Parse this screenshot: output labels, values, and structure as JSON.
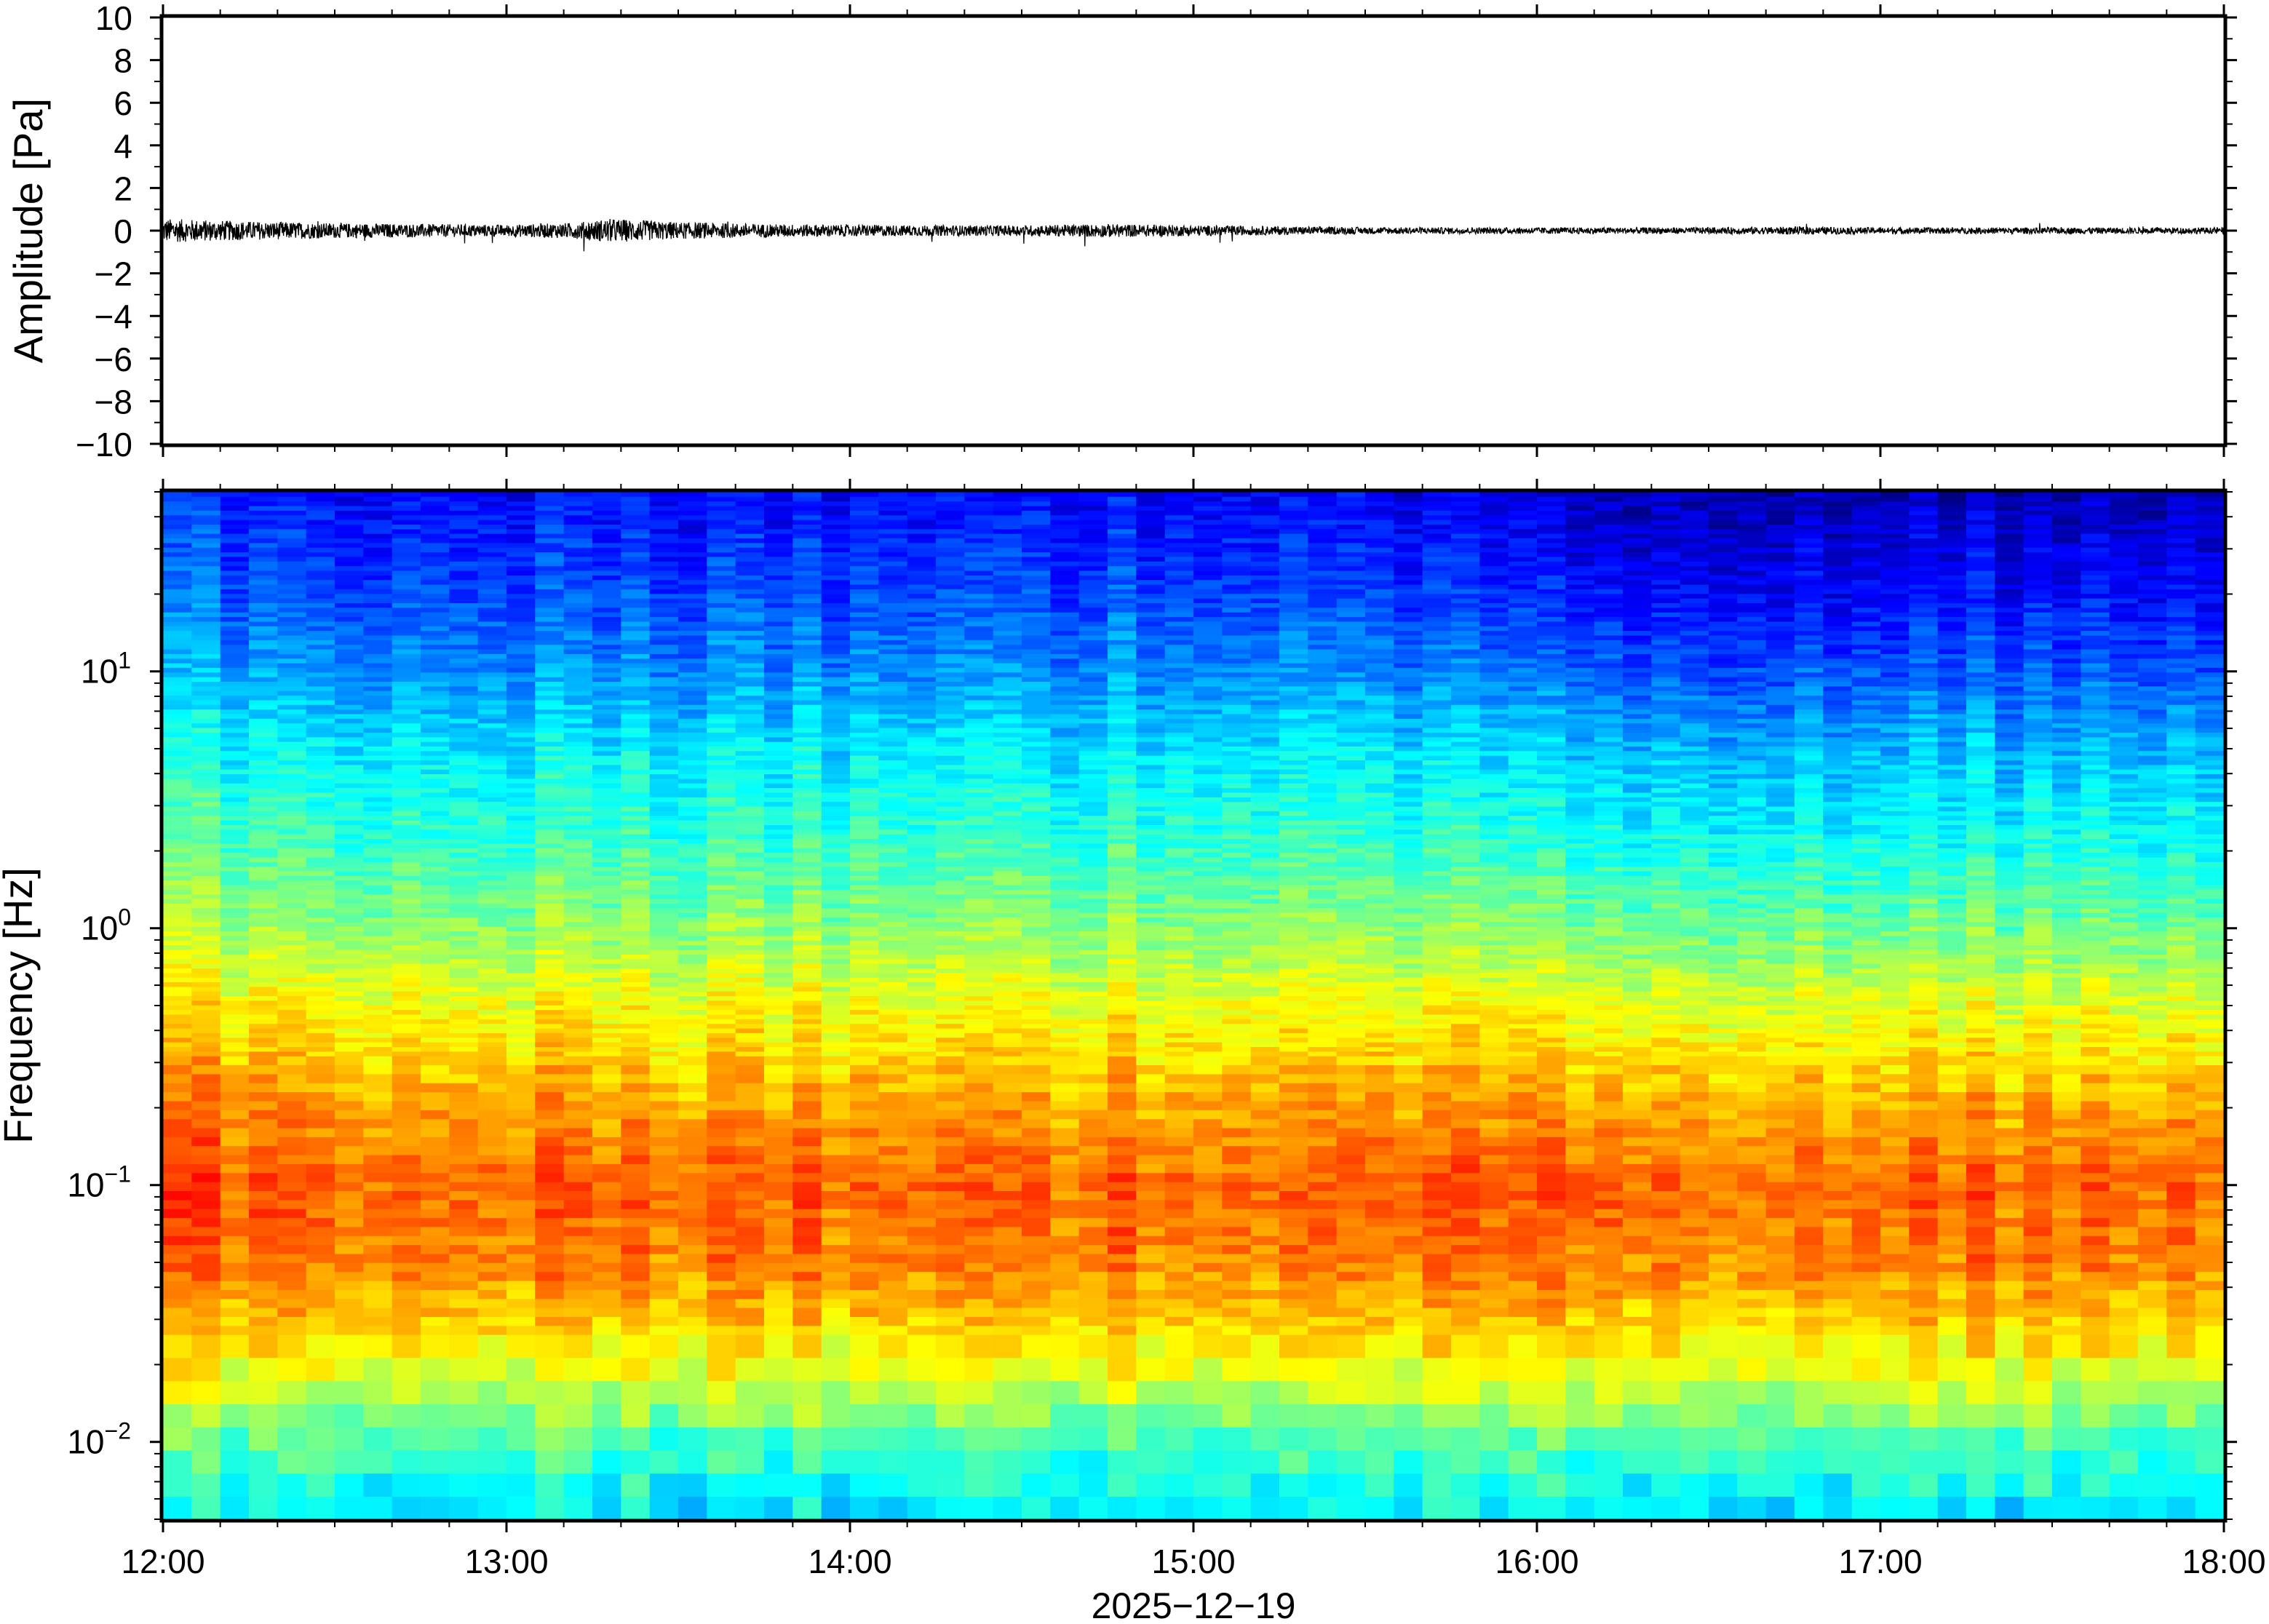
{
  "chart_data": [
    {
      "type": "line",
      "panel": "waveform",
      "ylabel": "Amplitude [Pa]",
      "ylim": [
        -10,
        10
      ],
      "yticks": [
        10,
        8,
        6,
        4,
        2,
        0,
        -2,
        -4,
        -6,
        -8,
        -10
      ],
      "ytick_labels": [
        "10",
        "8",
        "6",
        "4",
        "2",
        "0",
        "−2",
        "−4",
        "−6",
        "−8",
        "−10"
      ],
      "x_range": [
        "12:00",
        "18:00"
      ],
      "noise_envelope": {
        "hours": [
          12.0,
          12.25,
          12.5,
          12.75,
          13.0,
          13.2,
          13.3,
          13.5,
          13.75,
          14.0,
          14.25,
          14.5,
          14.75,
          15.0,
          15.25,
          15.5,
          15.75,
          16.0,
          16.25,
          16.5,
          16.75,
          17.0,
          17.25,
          17.5,
          17.75,
          18.0
        ],
        "amplitude_pa": [
          0.45,
          0.35,
          0.28,
          0.25,
          0.22,
          0.3,
          0.45,
          0.32,
          0.25,
          0.22,
          0.2,
          0.2,
          0.25,
          0.2,
          0.16,
          0.13,
          0.12,
          0.12,
          0.12,
          0.12,
          0.15,
          0.12,
          0.12,
          0.12,
          0.12,
          0.12
        ]
      }
    },
    {
      "type": "heatmap",
      "panel": "spectrogram",
      "ylabel": "Frequency [Hz]",
      "y_scale": "log",
      "ylim": [
        0.005,
        50
      ],
      "yticks": [
        0.01,
        0.1,
        1,
        10
      ],
      "ytick_labels": [
        {
          "base": "10",
          "exp": "−2"
        },
        {
          "base": "10",
          "exp": "−1"
        },
        {
          "base": "10",
          "exp": "0"
        },
        {
          "base": "10",
          "exp": "1"
        }
      ],
      "colormap": "jet",
      "color_profile": {
        "log10_freq": [
          -2.3,
          -2.0,
          -1.7,
          -1.3,
          -1.0,
          -0.7,
          -0.3,
          0.0,
          0.3,
          0.7,
          1.0,
          1.3,
          1.7
        ],
        "level": [
          0.35,
          0.45,
          0.62,
          0.75,
          0.78,
          0.72,
          0.62,
          0.52,
          0.44,
          0.36,
          0.27,
          0.2,
          0.13
        ]
      }
    }
  ],
  "shared_x": {
    "type": "time",
    "tick_labels": [
      "12:00",
      "13:00",
      "14:00",
      "15:00",
      "16:00",
      "17:00",
      "18:00"
    ],
    "minor_ticks_per_hour": 6,
    "date_label": "2025−12−19"
  }
}
